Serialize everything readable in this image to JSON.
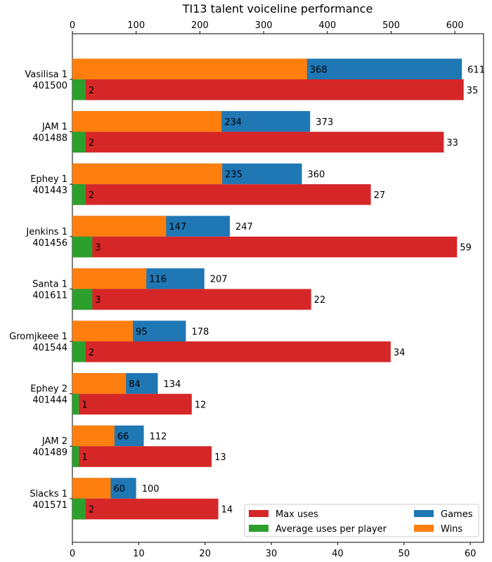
{
  "chart_data": {
    "type": "bar",
    "orientation": "horizontal",
    "title": "TI13 talent voiceline performance",
    "categories": [
      [
        "Vasilisa 1",
        "401500"
      ],
      [
        "JAM 1",
        "401488"
      ],
      [
        "Ephey 1",
        "401443"
      ],
      [
        "Jenkins 1",
        "401456"
      ],
      [
        "Santa 1",
        "401611"
      ],
      [
        "Gromjkeee 1",
        "401544"
      ],
      [
        "Ephey 2",
        "401444"
      ],
      [
        "JAM 2",
        "401489"
      ],
      [
        "Slacks 1",
        "401571"
      ]
    ],
    "top_axis": {
      "range": [
        0,
        645
      ],
      "ticks": [
        0,
        100,
        200,
        300,
        400,
        500,
        600
      ],
      "series": [
        {
          "name": "Games",
          "color": "#1f77b4",
          "values": [
            611,
            373,
            360,
            247,
            207,
            178,
            134,
            112,
            100
          ]
        },
        {
          "name": "Wins",
          "color": "#ff7f0e",
          "values": [
            368,
            234,
            235,
            147,
            116,
            95,
            84,
            66,
            60
          ]
        }
      ]
    },
    "bottom_axis": {
      "range": [
        0,
        62
      ],
      "ticks": [
        0,
        10,
        20,
        30,
        40,
        50,
        60
      ],
      "series": [
        {
          "name": "Max uses",
          "color": "#d62728",
          "values": [
            59,
            56,
            45,
            58,
            36,
            48,
            18,
            21,
            22
          ],
          "labels": [
            35,
            33,
            27,
            59,
            22,
            34,
            12,
            13,
            14
          ]
        },
        {
          "name": "Average uses per player",
          "color": "#2ca02c",
          "values": [
            2,
            2,
            2,
            3,
            3,
            2,
            1,
            1,
            2
          ]
        }
      ]
    },
    "legend": {
      "placement": "lower-right",
      "entries": [
        {
          "name": "Max uses",
          "color": "#d62728"
        },
        {
          "name": "Games",
          "color": "#1f77b4"
        },
        {
          "name": "Average uses per player",
          "color": "#2ca02c"
        },
        {
          "name": "Wins",
          "color": "#ff7f0e"
        }
      ]
    },
    "grid": false
  }
}
